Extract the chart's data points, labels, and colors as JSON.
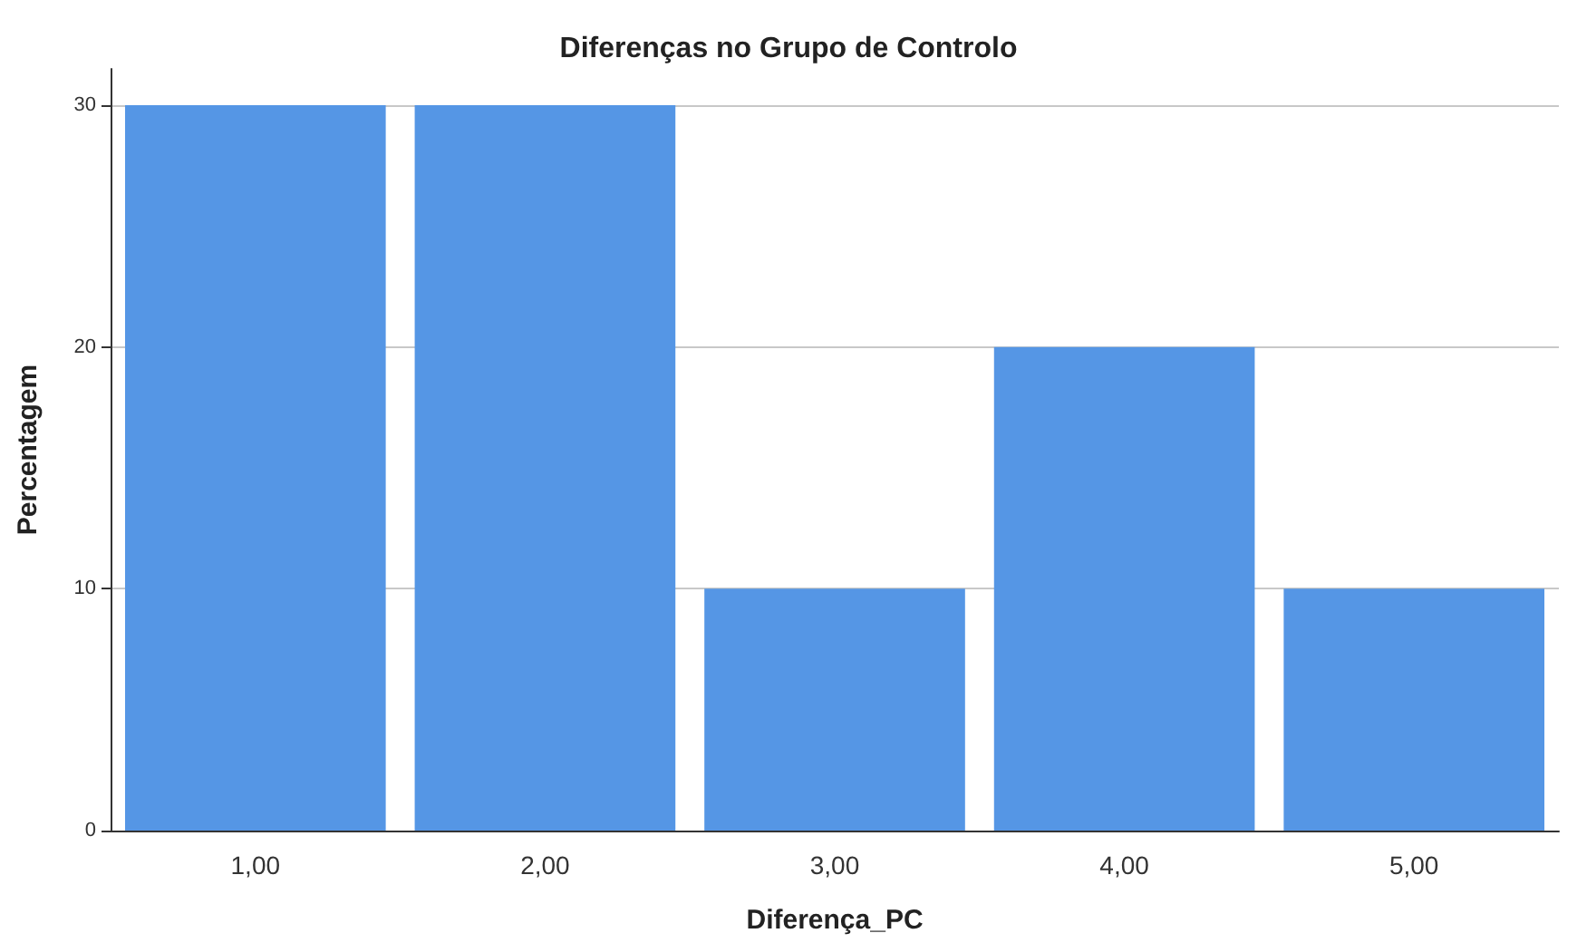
{
  "chart_data": {
    "type": "bar",
    "title": "Diferenças no Grupo de Controlo",
    "xlabel": "Diferença_PC",
    "ylabel": "Percentagem",
    "categories": [
      "1,00",
      "2,00",
      "3,00",
      "4,00",
      "5,00"
    ],
    "values": [
      30,
      30,
      10,
      20,
      10
    ],
    "color": "#5596e5",
    "ylim": [
      0,
      31.5
    ],
    "yticks": [
      0,
      10,
      20,
      30
    ],
    "grid": "y"
  }
}
